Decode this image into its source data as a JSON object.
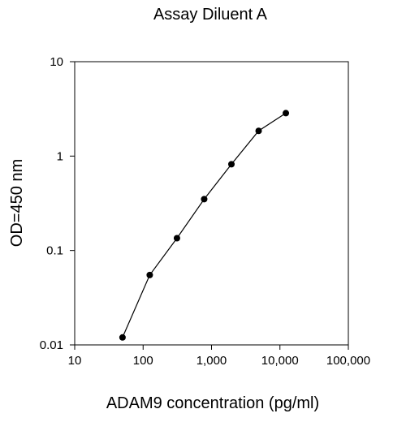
{
  "chart_data": {
    "type": "line",
    "title": "Assay Diluent A",
    "xlabel": "ADAM9 concentration (pg/ml)",
    "ylabel": "OD=450 nm",
    "x_scale": "log",
    "y_scale": "log",
    "xlim": [
      10,
      100000
    ],
    "ylim": [
      0.01,
      10
    ],
    "x_ticks": [
      {
        "value": 10,
        "label": "10"
      },
      {
        "value": 100,
        "label": "100"
      },
      {
        "value": 1000,
        "label": "1,000"
      },
      {
        "value": 10000,
        "label": "10,000"
      },
      {
        "value": 100000,
        "label": "100,000"
      }
    ],
    "y_ticks": [
      {
        "value": 0.01,
        "label": "0.01"
      },
      {
        "value": 0.1,
        "label": "0.1"
      },
      {
        "value": 1,
        "label": "1"
      },
      {
        "value": 10,
        "label": "10"
      }
    ],
    "grid": false,
    "series": [
      {
        "color": "#000000",
        "marker": "filled-circle",
        "x": [
          50,
          125,
          312.5,
          781,
          1953,
          4883,
          12207
        ],
        "y": [
          0.012,
          0.055,
          0.135,
          0.35,
          0.82,
          1.85,
          2.85
        ]
      }
    ]
  }
}
